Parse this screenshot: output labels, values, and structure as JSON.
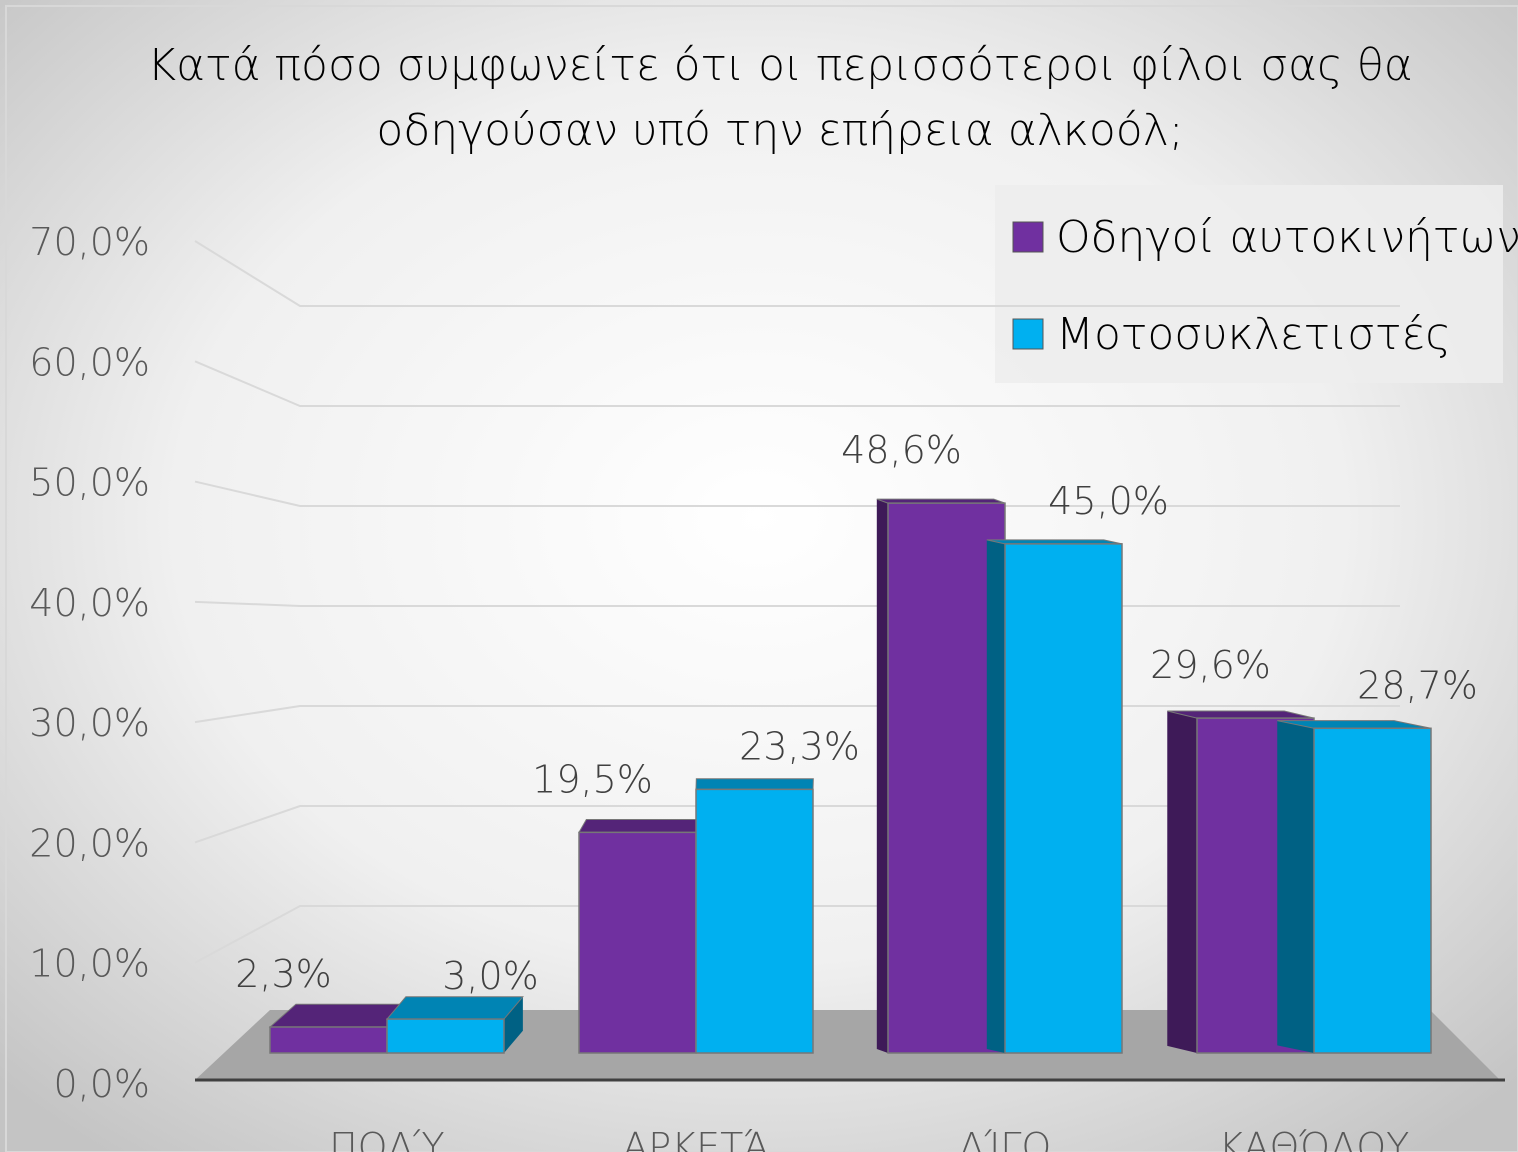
{
  "chart_data": {
    "type": "bar3d",
    "title": "Κατά πόσο συμφωνείτε ότι οι περισσότεροι φίλοι σας θα οδηγούσαν υπό την επήρεια αλκοόλ;",
    "categories": [
      "ΠΟΛΎ",
      "ΑΡΚΕΤΆ",
      "ΛΊΓΟ",
      "ΚΑΘΌΛΟΥ"
    ],
    "series": [
      {
        "name": "Οδηγοί αυτοκινήτων",
        "color": "#7030a0",
        "values": [
          2.3,
          19.5,
          48.6,
          29.6
        ],
        "value_labels": [
          "2,3%",
          "19,5%",
          "48,6%",
          "29,6%"
        ]
      },
      {
        "name": "Μοτοσυκλετιστές",
        "color": "#00b0f0",
        "values": [
          3.0,
          23.3,
          45.0,
          28.7
        ],
        "value_labels": [
          "3,0%",
          "23,3%",
          "45,0%",
          "28,7%"
        ]
      }
    ],
    "ylim": [
      0,
      70
    ],
    "yticks": [
      {
        "value": 0,
        "label": "0,0%"
      },
      {
        "value": 10,
        "label": "10,0%"
      },
      {
        "value": 20,
        "label": "20,0%"
      },
      {
        "value": 30,
        "label": "30,0%"
      },
      {
        "value": 40,
        "label": "40,0%"
      },
      {
        "value": 50,
        "label": "50,0%"
      },
      {
        "value": 60,
        "label": "60,0%"
      },
      {
        "value": 70,
        "label": "70,0%"
      }
    ],
    "grid": true,
    "legend": "top-right"
  }
}
